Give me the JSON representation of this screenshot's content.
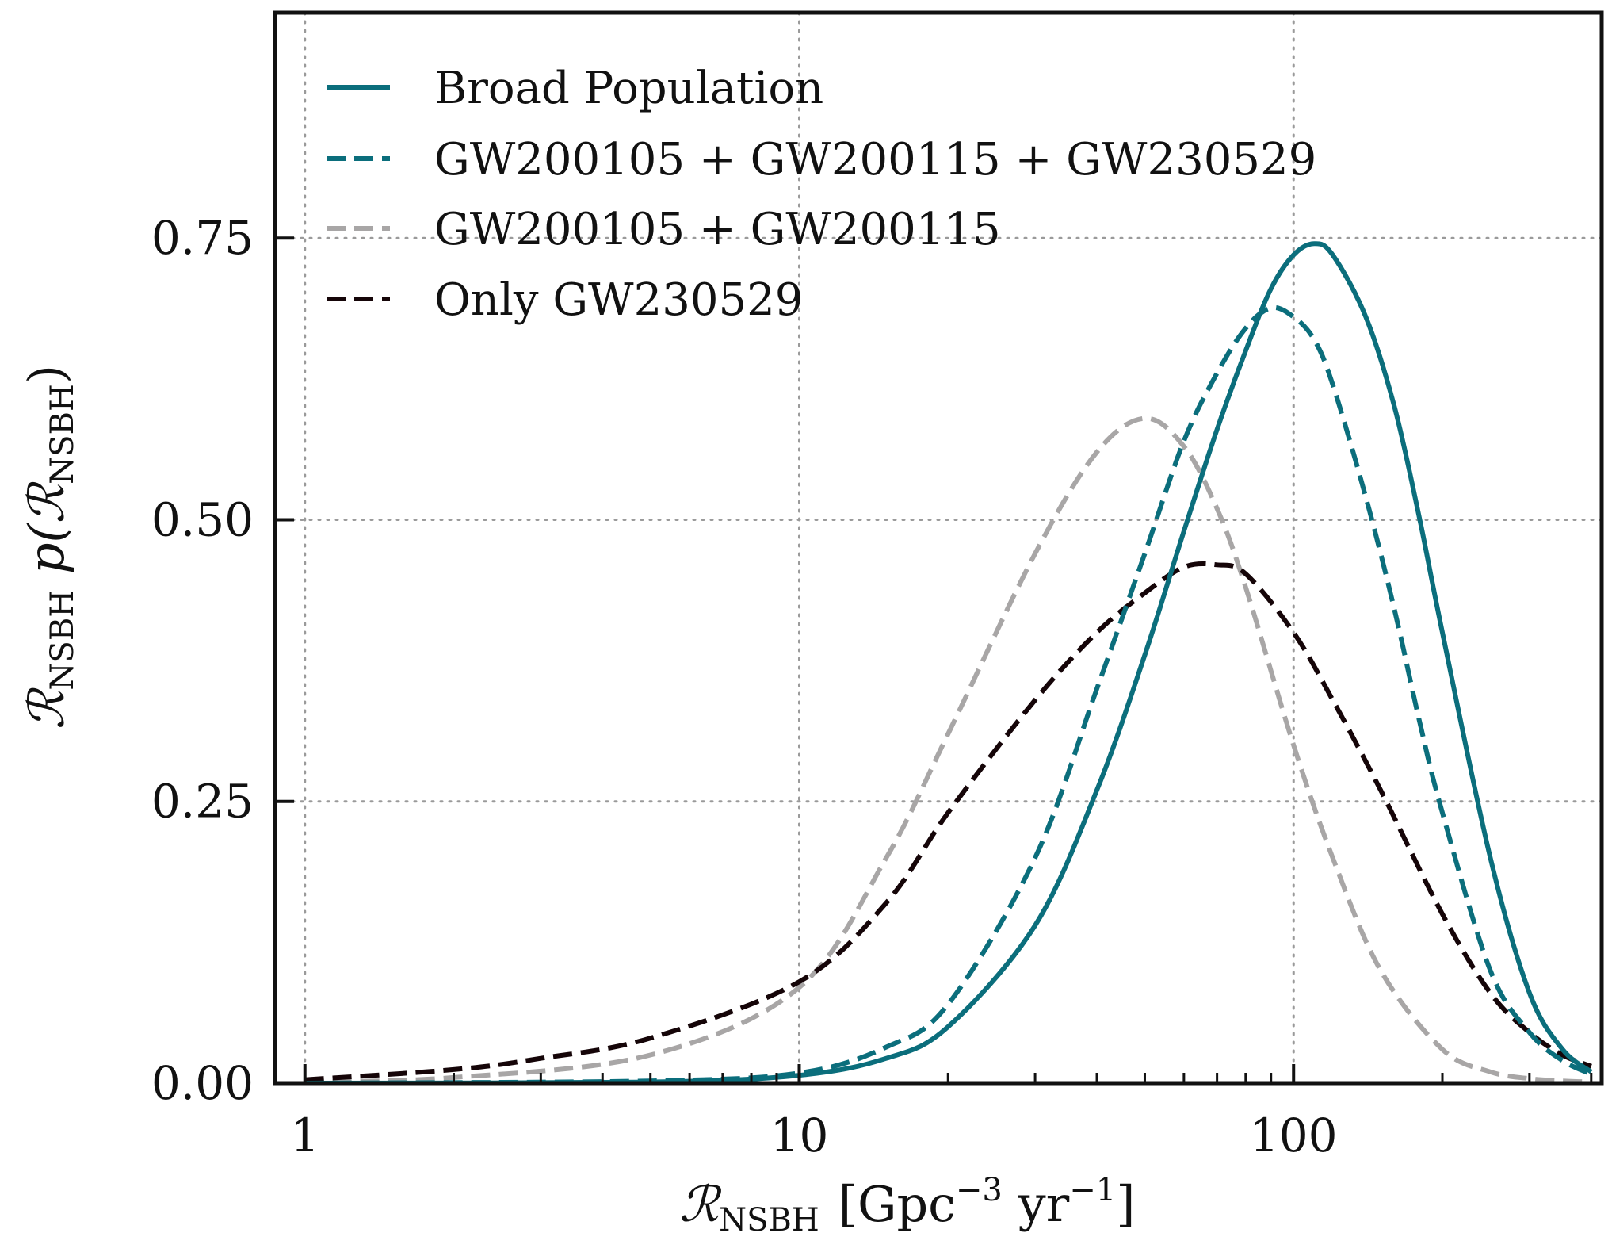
{
  "chart_data": {
    "type": "line",
    "x_scale": "log",
    "xlim": [
      0.87,
      420
    ],
    "ylim": [
      0,
      0.95
    ],
    "grid": true,
    "legend_position": "top-left",
    "xlabel": {
      "symbol": "ℛ",
      "sub": "NSBH",
      "unit": "[Gpc",
      "exp1": "−3",
      "mid": " yr",
      "exp2": "−1",
      "close": "]"
    },
    "ylabel": {
      "symbol": "ℛ",
      "sub": "NSBH",
      "func": " p(ℛ",
      "sub2": "NSBH",
      "close": ")"
    },
    "xticks": [
      {
        "value": 1,
        "label": "1"
      },
      {
        "value": 10,
        "label": "10"
      },
      {
        "value": 100,
        "label": "100"
      }
    ],
    "yticks": [
      {
        "value": 0.0,
        "label": "0.00"
      },
      {
        "value": 0.25,
        "label": "0.25"
      },
      {
        "value": 0.5,
        "label": "0.50"
      },
      {
        "value": 0.75,
        "label": "0.75"
      }
    ],
    "series": [
      {
        "name": "Broad Population",
        "color": "#0b6e7c",
        "style": "solid",
        "x": [
          1,
          5,
          10,
          15,
          20,
          30,
          40,
          50,
          60,
          70,
          80,
          90,
          100,
          110,
          120,
          140,
          160,
          180,
          200,
          250,
          300,
          350,
          400
        ],
        "y": [
          0.0,
          0.001,
          0.007,
          0.022,
          0.05,
          0.14,
          0.26,
          0.38,
          0.49,
          0.58,
          0.65,
          0.705,
          0.735,
          0.745,
          0.735,
          0.68,
          0.6,
          0.5,
          0.4,
          0.2,
          0.08,
          0.03,
          0.01
        ]
      },
      {
        "name": "GW200105 + GW200115 + GW230529",
        "color": "#0b6e7c",
        "style": "dashed",
        "x": [
          1,
          5,
          10,
          15,
          20,
          30,
          40,
          50,
          60,
          70,
          80,
          90,
          100,
          110,
          120,
          140,
          160,
          180,
          200,
          250,
          300,
          350,
          400
        ],
        "y": [
          0.0,
          0.002,
          0.009,
          0.032,
          0.07,
          0.2,
          0.35,
          0.47,
          0.57,
          0.63,
          0.67,
          0.688,
          0.68,
          0.66,
          0.62,
          0.52,
          0.42,
          0.32,
          0.24,
          0.1,
          0.045,
          0.02,
          0.008
        ]
      },
      {
        "name": "GW200105 + GW200115",
        "color": "#a8a6a6",
        "style": "dashed",
        "x": [
          1,
          2,
          5,
          10,
          15,
          20,
          30,
          40,
          50,
          60,
          70,
          80,
          100,
          120,
          150,
          200,
          250,
          300,
          350,
          400
        ],
        "y": [
          0.001,
          0.005,
          0.025,
          0.085,
          0.2,
          0.31,
          0.47,
          0.56,
          0.59,
          0.565,
          0.51,
          0.44,
          0.3,
          0.2,
          0.1,
          0.03,
          0.01,
          0.004,
          0.002,
          0.001
        ]
      },
      {
        "name": "Only GW230529",
        "color": "#150508",
        "style": "dashed",
        "x": [
          1,
          2,
          3,
          5,
          10,
          15,
          20,
          30,
          40,
          50,
          60,
          70,
          80,
          100,
          120,
          150,
          200,
          250,
          300,
          350,
          400
        ],
        "y": [
          0.003,
          0.012,
          0.022,
          0.04,
          0.09,
          0.16,
          0.24,
          0.34,
          0.4,
          0.435,
          0.458,
          0.46,
          0.452,
          0.4,
          0.34,
          0.26,
          0.15,
          0.08,
          0.045,
          0.025,
          0.015
        ]
      }
    ]
  }
}
